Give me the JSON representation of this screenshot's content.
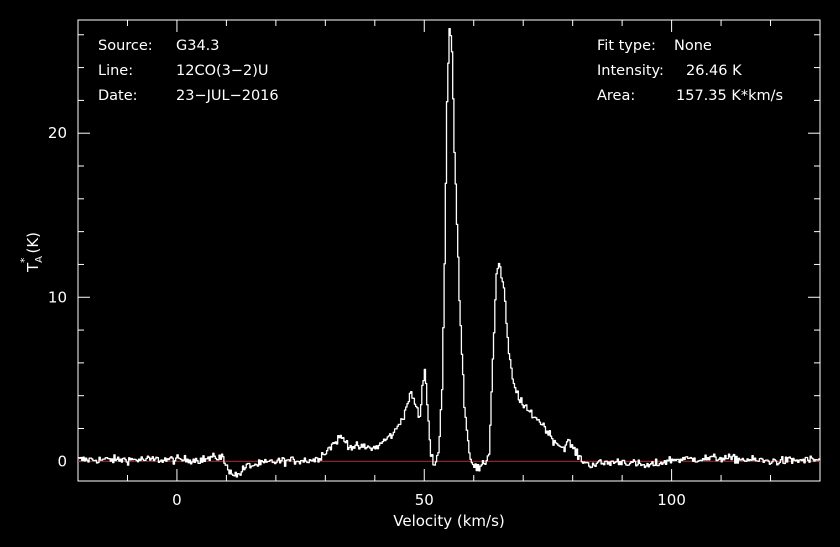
{
  "annotations": {
    "source_label": "Source:",
    "source_value": "G34.3",
    "line_label": "Line:",
    "line_value": "12CO(3−2)U",
    "date_label": "Date:",
    "date_value": "23−JUL−2016",
    "fit_label": "Fit type:",
    "fit_value": "None",
    "intensity_label": "Intensity:",
    "intensity_value": "26.46 K",
    "area_label": "Area:",
    "area_value": "157.35 K*km/s"
  },
  "colors": {
    "background": "#000000",
    "spectrum": "#ffffff",
    "baseline": "#ff0000",
    "axes": "#ffffff"
  },
  "chart_data": {
    "type": "line",
    "xlabel": "Velocity (km/s)",
    "ylabel": {
      "base": "T",
      "sup": "*",
      "sub": "A",
      "unit": "(K)"
    },
    "xlim": [
      -20,
      130
    ],
    "ylim": [
      -1.2,
      26.9
    ],
    "xticks": [
      0,
      50,
      100
    ],
    "yticks": [
      0,
      10,
      20
    ],
    "baseline_y": 0,
    "noise_rms": 0.25,
    "series": [
      {
        "x": [
          -20,
          5,
          9,
          10,
          12,
          14,
          20,
          28,
          30,
          32,
          33,
          35,
          40,
          44,
          46,
          47,
          48,
          49,
          49.5,
          50,
          50.6,
          51.2,
          52,
          52.8,
          53.5,
          54,
          54.5,
          55,
          55.5,
          56,
          57,
          58,
          59,
          60,
          61,
          62,
          63,
          64,
          64.5,
          65,
          66,
          67,
          68,
          70,
          72,
          74,
          76,
          78,
          79,
          80,
          81,
          83,
          90,
          95,
          100,
          110,
          120,
          130
        ],
        "y": [
          0.1,
          0.1,
          0.3,
          -0.4,
          -0.9,
          -0.3,
          0.0,
          0.1,
          0.6,
          1.2,
          1.5,
          0.9,
          0.8,
          1.8,
          3.0,
          4.1,
          3.6,
          2.6,
          4.5,
          5.5,
          3.2,
          0.4,
          -0.1,
          0.5,
          4.5,
          12.0,
          22.0,
          26.4,
          25.0,
          19.0,
          10.0,
          3.5,
          0.5,
          -0.3,
          -0.5,
          -0.2,
          0.5,
          8.0,
          11.5,
          12.1,
          10.5,
          6.5,
          4.6,
          3.3,
          2.8,
          2.2,
          1.3,
          0.8,
          1.2,
          0.8,
          0.3,
          -0.2,
          0.0,
          -0.3,
          0.1,
          0.2,
          0.0,
          0.1
        ]
      }
    ]
  }
}
